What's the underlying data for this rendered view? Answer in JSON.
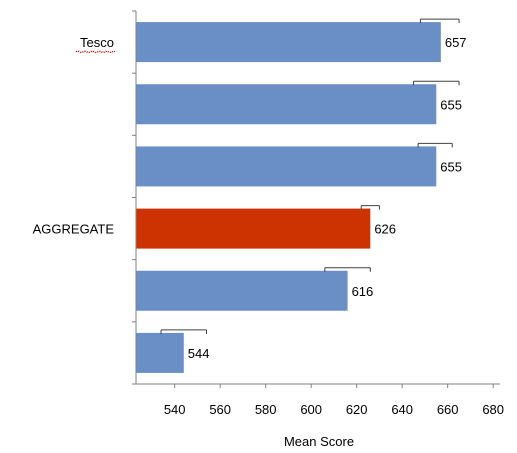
{
  "chart_data": {
    "type": "bar",
    "orientation": "horizontal",
    "categories": [
      "Tesco",
      "",
      "",
      "AGGREGATE",
      "",
      ""
    ],
    "values": [
      657,
      655,
      655,
      626,
      616,
      544
    ],
    "error_upper": [
      665,
      665,
      662,
      630,
      626,
      554
    ],
    "error_lower": [
      648,
      645,
      647,
      622,
      606,
      534
    ],
    "highlight_index": 3,
    "xlabel": "Mean Score",
    "ylabel": "",
    "title": "",
    "xlim": [
      523,
      683
    ],
    "xticks": [
      540,
      560,
      580,
      600,
      620,
      640,
      660,
      680
    ],
    "grid": false,
    "legend": "none",
    "colors": {
      "bar": "#6a8fc7",
      "highlight": "#cc3300",
      "axis": "#808080",
      "error": "#404040"
    }
  }
}
